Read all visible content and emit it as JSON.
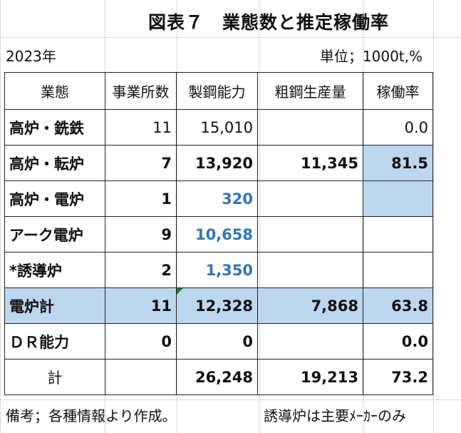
{
  "title": "図表７　業態数と推定稼働率",
  "year": "2023年",
  "unit": "単位；1000t,%",
  "headers": [
    "業態",
    "事業所数",
    "製鋼能力",
    "粗鋼生産量",
    "稼働率"
  ],
  "rows": [
    {
      "name": "高炉・銑鉄",
      "count": "11",
      "capacity": "15,010",
      "production": "",
      "rate": "0.0"
    },
    {
      "name": "高炉・転炉",
      "count": "7",
      "capacity": "13,920",
      "production": "11,345",
      "rate": "81.5"
    },
    {
      "name": "高炉・電炉",
      "count": "1",
      "capacity": "320",
      "production": "",
      "rate": ""
    },
    {
      "name": "アーク電炉",
      "count": "9",
      "capacity": "10,658",
      "production": "",
      "rate": ""
    },
    {
      "name": "*誘導炉",
      "count": "2",
      "capacity": "1,350",
      "production": "",
      "rate": ""
    },
    {
      "name": "電炉計",
      "count": "11",
      "capacity": "12,328",
      "production": "7,868",
      "rate": "63.8"
    },
    {
      "name": "ＤＲ能力",
      "count": "0",
      "capacity": "0",
      "production": "",
      "rate": "0.0"
    },
    {
      "name": "計",
      "count": "",
      "capacity": "26,248",
      "production": "19,213",
      "rate": "73.2"
    }
  ],
  "note_left": "備考；各種情報より作成。",
  "note_right": "誘導炉は主要ﾒｰｶｰのみ",
  "colors": {
    "highlight": "#bdd7ee",
    "blue_text": "#2f75b5",
    "border": "#222222",
    "grid": "#d9d9d9"
  }
}
